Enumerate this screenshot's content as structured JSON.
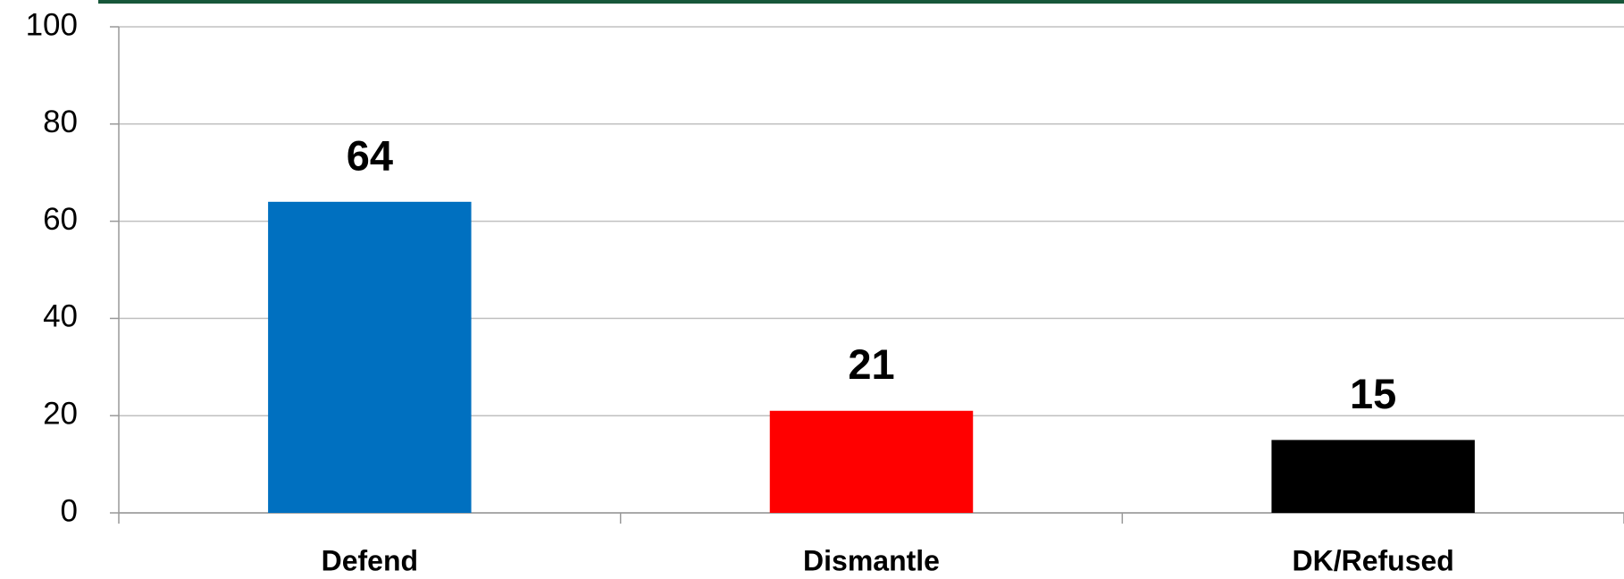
{
  "chart_data": {
    "type": "bar",
    "categories": [
      "Defend",
      "Dismantle",
      "DK/Refused"
    ],
    "values": [
      64,
      21,
      15
    ],
    "colors": [
      "#0070c0",
      "#ff0000",
      "#000000"
    ],
    "ylim": [
      0,
      100
    ],
    "yticks": [
      0,
      20,
      40,
      60,
      80,
      100
    ],
    "grid": true
  }
}
